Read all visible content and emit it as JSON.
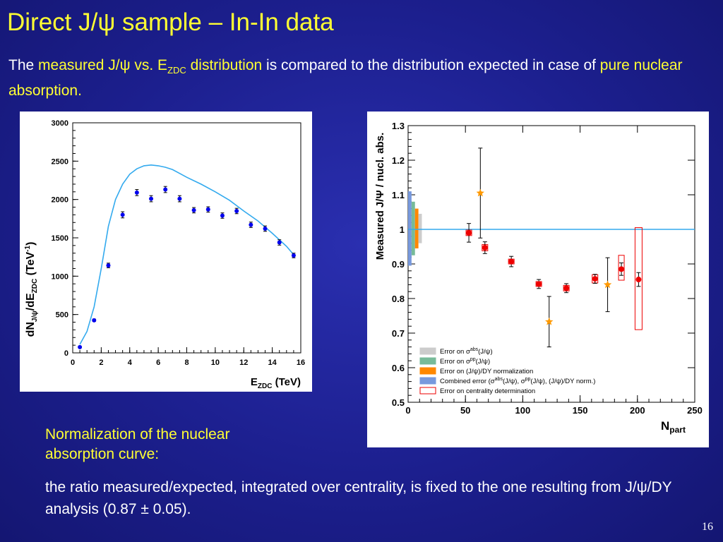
{
  "slide": {
    "title": "Direct J/ψ sample – In-In data",
    "intro": {
      "p1": "The ",
      "h1": "measured J/ψ vs. E",
      "h1_sub": "ZDC",
      "h2": " distribution",
      "p2": " is compared to the distribution expected in case of ",
      "h3": "pure nuclear absorption."
    },
    "normalization_title": "Normalization of the nuclear absorption curve:",
    "normalization_text": "the ratio measured/expected, integrated over centrality, is fixed to the one resulting from J/ψ/DY analysis  (0.87 ± 0.05).",
    "page_number": "16",
    "colors": {
      "background": "#1c1f8e",
      "highlight": "#ffff33",
      "text": "#ffffff"
    }
  },
  "chart_data": [
    {
      "type": "scatter",
      "ylabel": "dN_J/ψ/dE_ZDC (TeV^-1)",
      "xlabel": "E_ZDC (TeV)",
      "xlim": [
        0,
        16
      ],
      "ylim": [
        0,
        3000
      ],
      "xticks": [
        "0",
        "2",
        "4",
        "6",
        "8",
        "10",
        "12",
        "14",
        "16"
      ],
      "yticks": [
        "0",
        "500",
        "1000",
        "1500",
        "2000",
        "2500",
        "3000"
      ],
      "series": [
        {
          "kind": "points",
          "color": "#0000ee",
          "x": [
            0.5,
            1.5,
            2.5,
            3.5,
            4.5,
            5.5,
            6.5,
            7.5,
            8.5,
            9.5,
            10.5,
            11.5,
            12.5,
            13.5,
            14.5,
            15.5
          ],
          "y": [
            75,
            425,
            1140,
            1800,
            2090,
            2010,
            2130,
            2010,
            1860,
            1870,
            1790,
            1850,
            1670,
            1620,
            1440,
            1270
          ],
          "err": [
            10,
            15,
            30,
            40,
            40,
            40,
            40,
            40,
            35,
            35,
            35,
            35,
            35,
            35,
            35,
            30
          ]
        },
        {
          "kind": "curve",
          "color": "#33aaee",
          "x": [
            0.5,
            1.0,
            1.5,
            2.0,
            2.5,
            3.0,
            3.5,
            4.0,
            4.5,
            5.0,
            5.5,
            6.0,
            6.5,
            7.0,
            7.5,
            8.0,
            9.0,
            10.0,
            11.0,
            12.0,
            13.0,
            14.0,
            15.0,
            15.5
          ],
          "y": [
            110,
            280,
            600,
            1100,
            1650,
            2000,
            2200,
            2330,
            2400,
            2440,
            2450,
            2440,
            2420,
            2390,
            2340,
            2290,
            2200,
            2100,
            1990,
            1850,
            1720,
            1560,
            1390,
            1280
          ]
        }
      ]
    },
    {
      "type": "scatter",
      "ylabel": "Measured J/Ψ / nucl. abs.",
      "xlabel": "N",
      "xlabel_sub": "part",
      "xlim": [
        0,
        250
      ],
      "ylim": [
        0.5,
        1.3
      ],
      "xticks": [
        "0",
        "50",
        "100",
        "150",
        "200",
        "250"
      ],
      "yticks": [
        "0.5",
        "0.6",
        "0.7",
        "0.8",
        "0.9",
        "1",
        "1.1",
        "1.2",
        "1.3"
      ],
      "reference_line": {
        "y": 1.0,
        "color": "#33aaee"
      },
      "error_bands": [
        {
          "x": 1.5,
          "low": 0.895,
          "high": 1.11,
          "color": "#7799dd"
        },
        {
          "x": 4.5,
          "low": 0.925,
          "high": 1.08,
          "color": "#77bb99"
        },
        {
          "x": 7.5,
          "low": 0.945,
          "high": 1.06,
          "color": "#ff8800"
        },
        {
          "x": 10.5,
          "low": 0.96,
          "high": 1.045,
          "color": "#cccccc"
        }
      ],
      "series": [
        {
          "marker": "circle",
          "color": "#ee0000",
          "x": [
            53,
            67,
            90,
            114,
            138,
            163,
            186,
            201
          ],
          "y": [
            0.99,
            0.947,
            0.907,
            0.842,
            0.83,
            0.857,
            0.885,
            0.855
          ],
          "err": [
            0.027,
            0.017,
            0.015,
            0.013,
            0.013,
            0.013,
            0.018,
            0.02
          ],
          "centrality_box": [
            [
              0.982,
              0.998
            ],
            [
              0.938,
              0.956
            ],
            [
              0.9,
              0.914
            ],
            [
              0.835,
              0.849
            ],
            [
              0.822,
              0.838
            ],
            [
              0.845,
              0.869
            ],
            [
              0.853,
              0.925
            ],
            [
              0.71,
              1.005
            ]
          ]
        },
        {
          "marker": "star",
          "color": "#ff9900",
          "x": [
            63,
            123,
            174
          ],
          "y": [
            1.105,
            0.733,
            0.84
          ],
          "err": [
            0.13,
            0.073,
            0.078
          ]
        }
      ],
      "legend": {
        "placement": "bottom-center",
        "entries": [
          {
            "label": "Error on σ^abs(J/ψ)",
            "color": "#cccccc",
            "filled": true
          },
          {
            "label": "Error on σ^pp(J/ψ)",
            "color": "#77bb99",
            "filled": true
          },
          {
            "label": "Error on (J/ψ)/DY normalization",
            "color": "#ff8800",
            "filled": true
          },
          {
            "label": "Combined error (σ^abs(J/ψ), σ^pp(J/ψ), (J/ψ)/DY norm.)",
            "color": "#7799dd",
            "filled": true
          },
          {
            "label": "Error on centrality determination",
            "color": "#ee0000",
            "filled": false
          }
        ]
      }
    }
  ]
}
